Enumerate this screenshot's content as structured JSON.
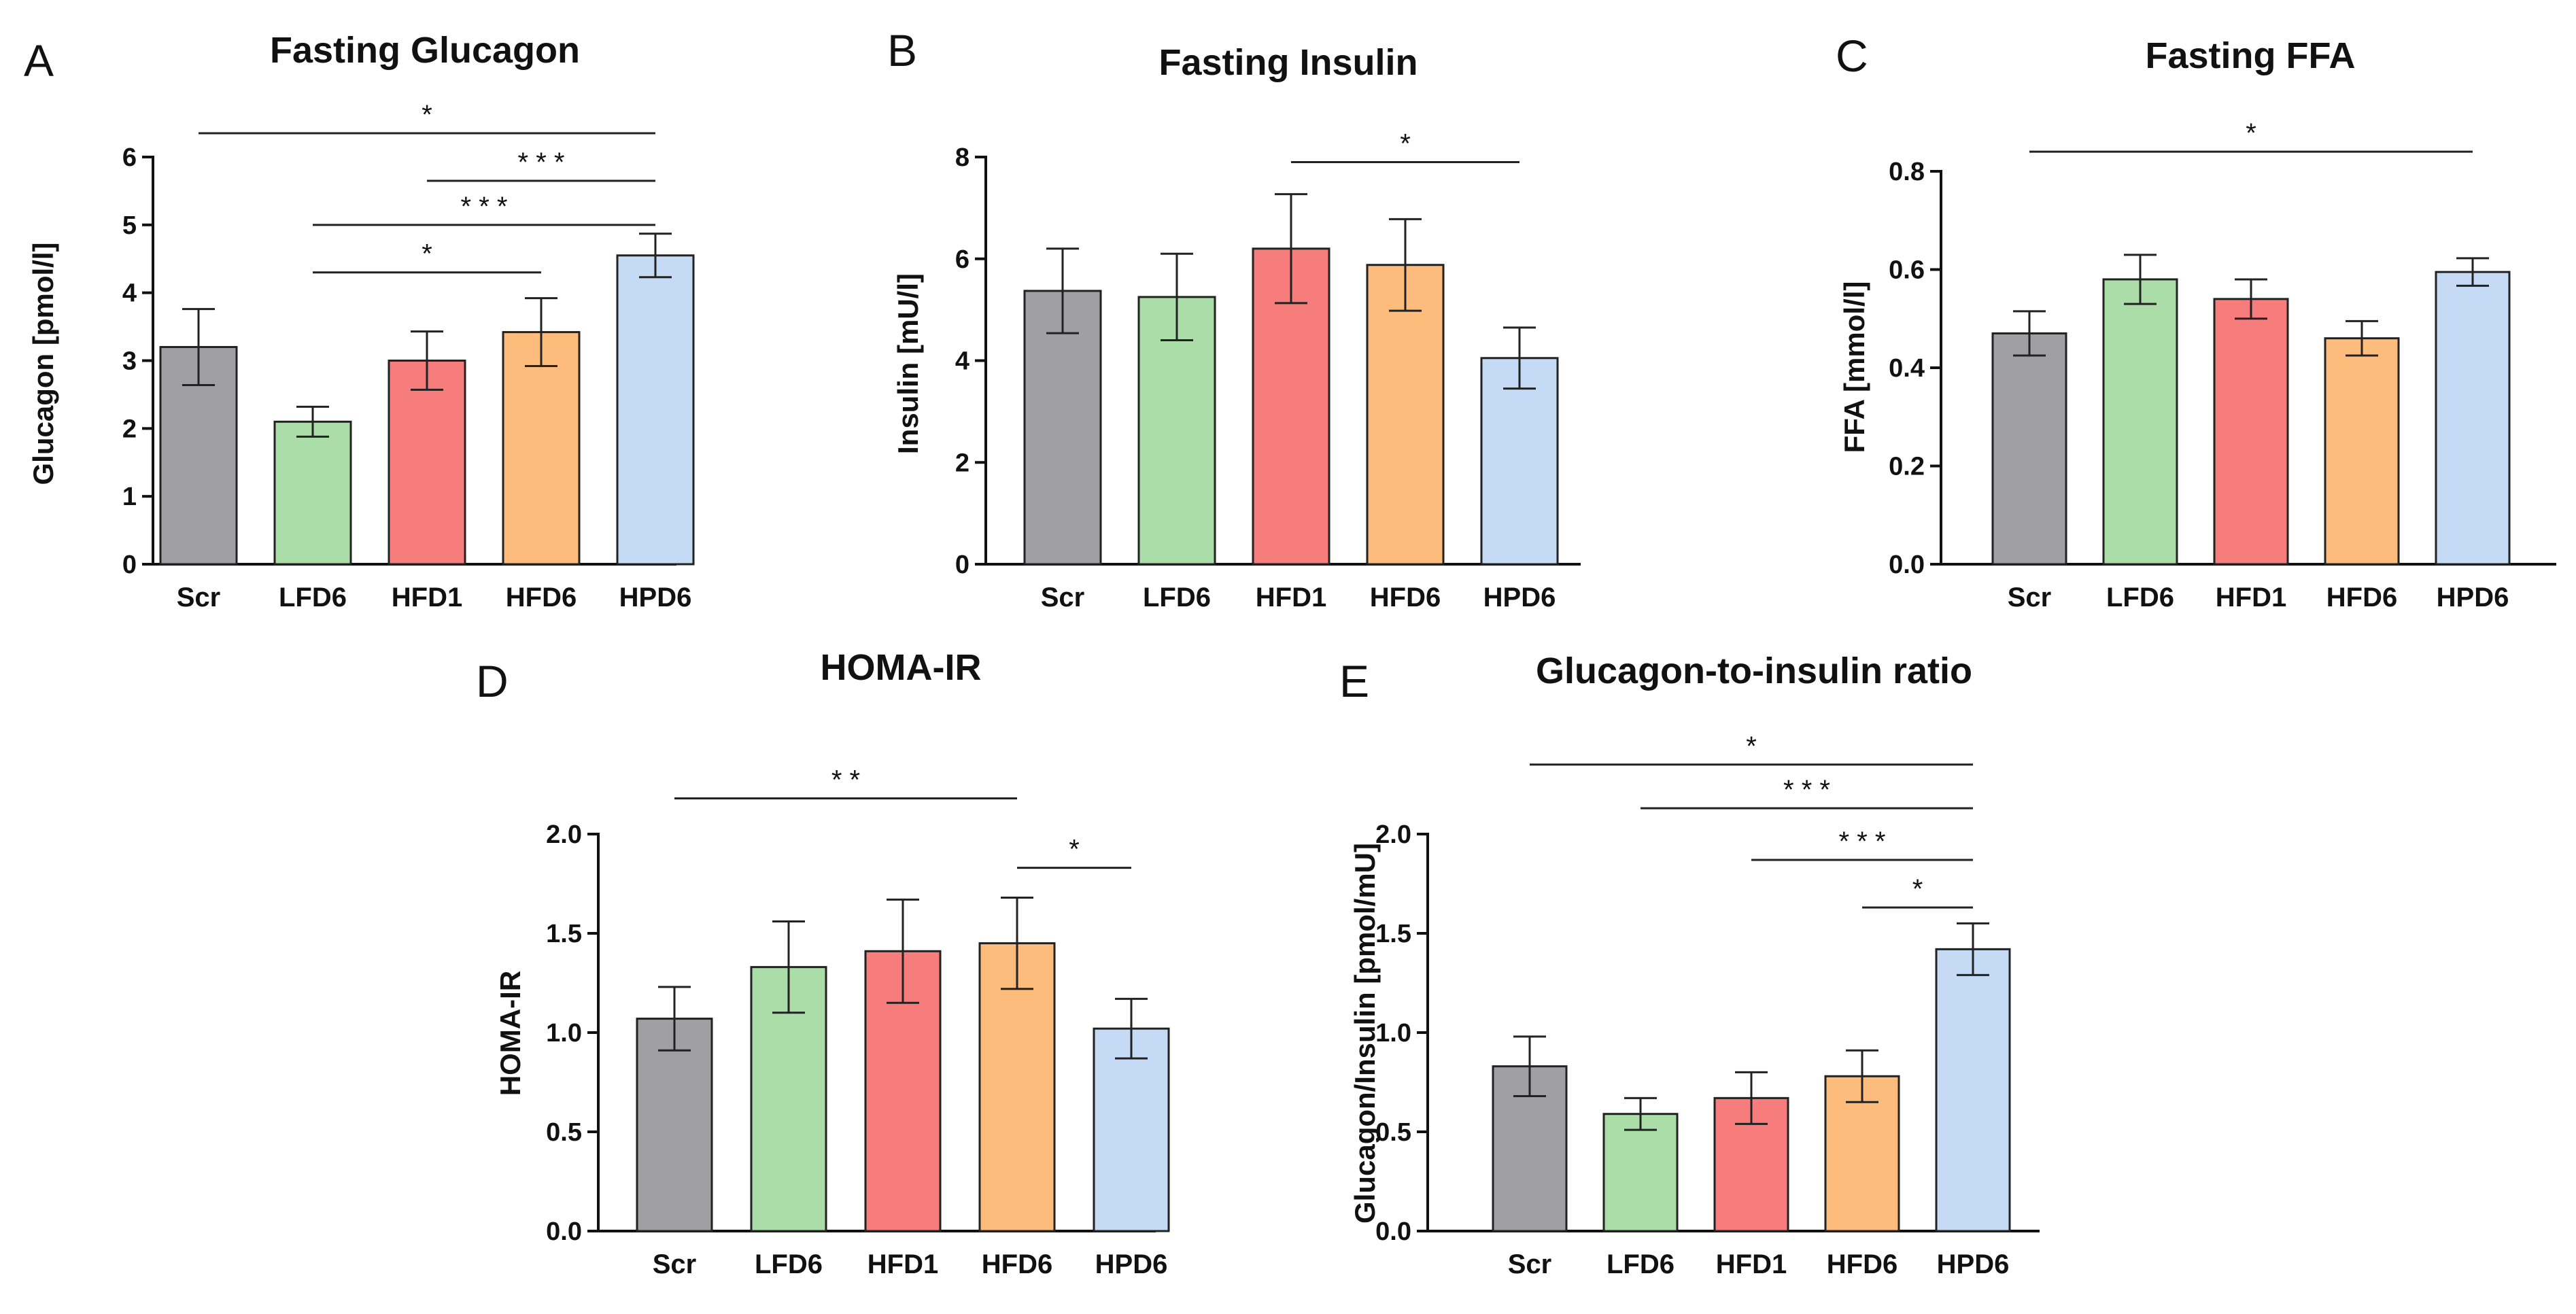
{
  "colors": {
    "Scr": "#a0a0a4",
    "LFD6": "#abdda9",
    "HFD1": "#f77c7c",
    "HFD6": "#fdbc7c",
    "HPD6": "#c5daf4"
  },
  "chart_data": [
    {
      "type": "bar",
      "panel": "A",
      "title": "Fasting Glucagon",
      "ylabel": "Glucagon [pmol/l]",
      "categories": [
        "Scr",
        "LFD6",
        "HFD1",
        "HFD6",
        "HPD6"
      ],
      "values": [
        3.2,
        2.1,
        3.0,
        3.42,
        4.55
      ],
      "errors": [
        0.56,
        0.22,
        0.43,
        0.5,
        0.32
      ],
      "ylim": [
        0,
        6
      ],
      "yticks": [
        0,
        1,
        2,
        3,
        4,
        5,
        6
      ],
      "ytick_labels": [
        "0",
        "1",
        "2",
        "3",
        "4",
        "5",
        "6"
      ],
      "significance": [
        {
          "from": 0,
          "to": 4,
          "label": "*",
          "y": 6.35
        },
        {
          "from": 2,
          "to": 4,
          "label": "* * *",
          "y": 5.65
        },
        {
          "from": 1,
          "to": 4,
          "label": "* * *",
          "y": 5.0
        },
        {
          "from": 1,
          "to": 3,
          "label": "*",
          "y": 4.3
        }
      ]
    },
    {
      "type": "bar",
      "panel": "B",
      "title": "Fasting Insulin",
      "ylabel": "Insulin [mU/l]",
      "categories": [
        "Scr",
        "LFD6",
        "HFD1",
        "HFD6",
        "HPD6"
      ],
      "values": [
        5.37,
        5.25,
        6.2,
        5.88,
        4.05
      ],
      "errors": [
        0.83,
        0.85,
        1.07,
        0.9,
        0.6
      ],
      "ylim": [
        0,
        8
      ],
      "yticks": [
        0,
        2,
        4,
        6,
        8
      ],
      "ytick_labels": [
        "0",
        "2",
        "4",
        "6",
        "8"
      ],
      "significance": [
        {
          "from": 2,
          "to": 4,
          "label": "*",
          "y": 7.9
        }
      ]
    },
    {
      "type": "bar",
      "panel": "C",
      "title": "Fasting FFA",
      "ylabel": "FFA [mmol/l]",
      "categories": [
        "Scr",
        "LFD6",
        "HFD1",
        "HFD6",
        "HPD6"
      ],
      "values": [
        0.47,
        0.58,
        0.54,
        0.46,
        0.595
      ],
      "errors": [
        0.045,
        0.05,
        0.04,
        0.035,
        0.028
      ],
      "ylim": [
        0,
        0.8
      ],
      "yticks": [
        0,
        0.2,
        0.4,
        0.6,
        0.8
      ],
      "ytick_labels": [
        "0.0",
        "0.2",
        "0.4",
        "0.6",
        "0.8"
      ],
      "significance": [
        {
          "from": 0,
          "to": 4,
          "label": "*",
          "y": 0.84
        }
      ]
    },
    {
      "type": "bar",
      "panel": "D",
      "title": "HOMA-IR",
      "ylabel": "HOMA-IR",
      "categories": [
        "Scr",
        "LFD6",
        "HFD1",
        "HFD6",
        "HPD6"
      ],
      "values": [
        1.07,
        1.33,
        1.41,
        1.45,
        1.02
      ],
      "errors": [
        0.16,
        0.23,
        0.26,
        0.23,
        0.15
      ],
      "ylim": [
        0,
        2.0
      ],
      "yticks": [
        0,
        0.5,
        1.0,
        1.5,
        2.0
      ],
      "ytick_labels": [
        "0.0",
        "0.5",
        "1.0",
        "1.5",
        "2.0"
      ],
      "significance": [
        {
          "from": 0,
          "to": 3,
          "label": "* *",
          "y": 2.18
        },
        {
          "from": 3,
          "to": 4,
          "label": "*",
          "y": 1.83
        }
      ]
    },
    {
      "type": "bar",
      "panel": "E",
      "title": "Glucagon-to-insulin ratio",
      "ylabel": "Glucagon/Insulin [pmol/mU]",
      "categories": [
        "Scr",
        "LFD6",
        "HFD1",
        "HFD6",
        "HPD6"
      ],
      "values": [
        0.83,
        0.59,
        0.67,
        0.78,
        1.42
      ],
      "errors": [
        0.15,
        0.08,
        0.13,
        0.13,
        0.13
      ],
      "ylim": [
        0,
        2.0
      ],
      "yticks": [
        0,
        0.5,
        1.0,
        1.5,
        2.0
      ],
      "ytick_labels": [
        "0.0",
        "0.5",
        "1.0",
        "1.5",
        "2.0"
      ],
      "significance": [
        {
          "from": 0,
          "to": 4,
          "label": "*",
          "y": 2.35
        },
        {
          "from": 1,
          "to": 4,
          "label": "* * *",
          "y": 2.13
        },
        {
          "from": 2,
          "to": 4,
          "label": "* * *",
          "y": 1.87
        },
        {
          "from": 3,
          "to": 4,
          "label": "*",
          "y": 1.63
        }
      ]
    }
  ]
}
